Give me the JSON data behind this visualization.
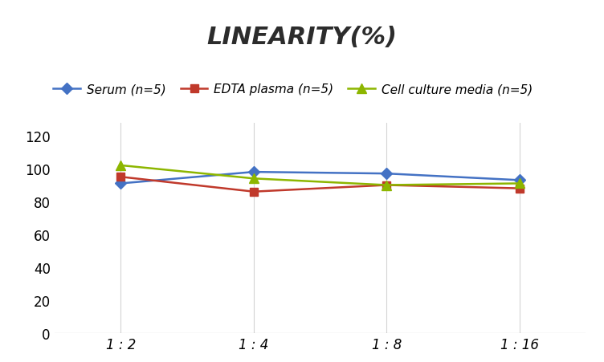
{
  "title": "LINEARITY(%)",
  "x_labels": [
    "1 : 2",
    "1 : 4",
    "1 : 8",
    "1 : 16"
  ],
  "x_positions": [
    0,
    1,
    2,
    3
  ],
  "series": [
    {
      "label": "Serum (n=5)",
      "values": [
        91,
        98,
        97,
        93
      ],
      "color": "#4472C4",
      "marker": "D",
      "markersize": 7
    },
    {
      "label": "EDTA plasma (n=5)",
      "values": [
        95,
        86,
        90,
        88
      ],
      "color": "#C0392B",
      "marker": "s",
      "markersize": 7
    },
    {
      "label": "Cell culture media (n=5)",
      "values": [
        102,
        94,
        90,
        91
      ],
      "color": "#8DB600",
      "marker": "^",
      "markersize": 8
    }
  ],
  "ylim": [
    0,
    128
  ],
  "yticks": [
    0,
    20,
    40,
    60,
    80,
    100,
    120
  ],
  "background_color": "#ffffff",
  "grid_color": "#d4d4d4",
  "title_fontsize": 22,
  "legend_fontsize": 11,
  "tick_fontsize": 12
}
